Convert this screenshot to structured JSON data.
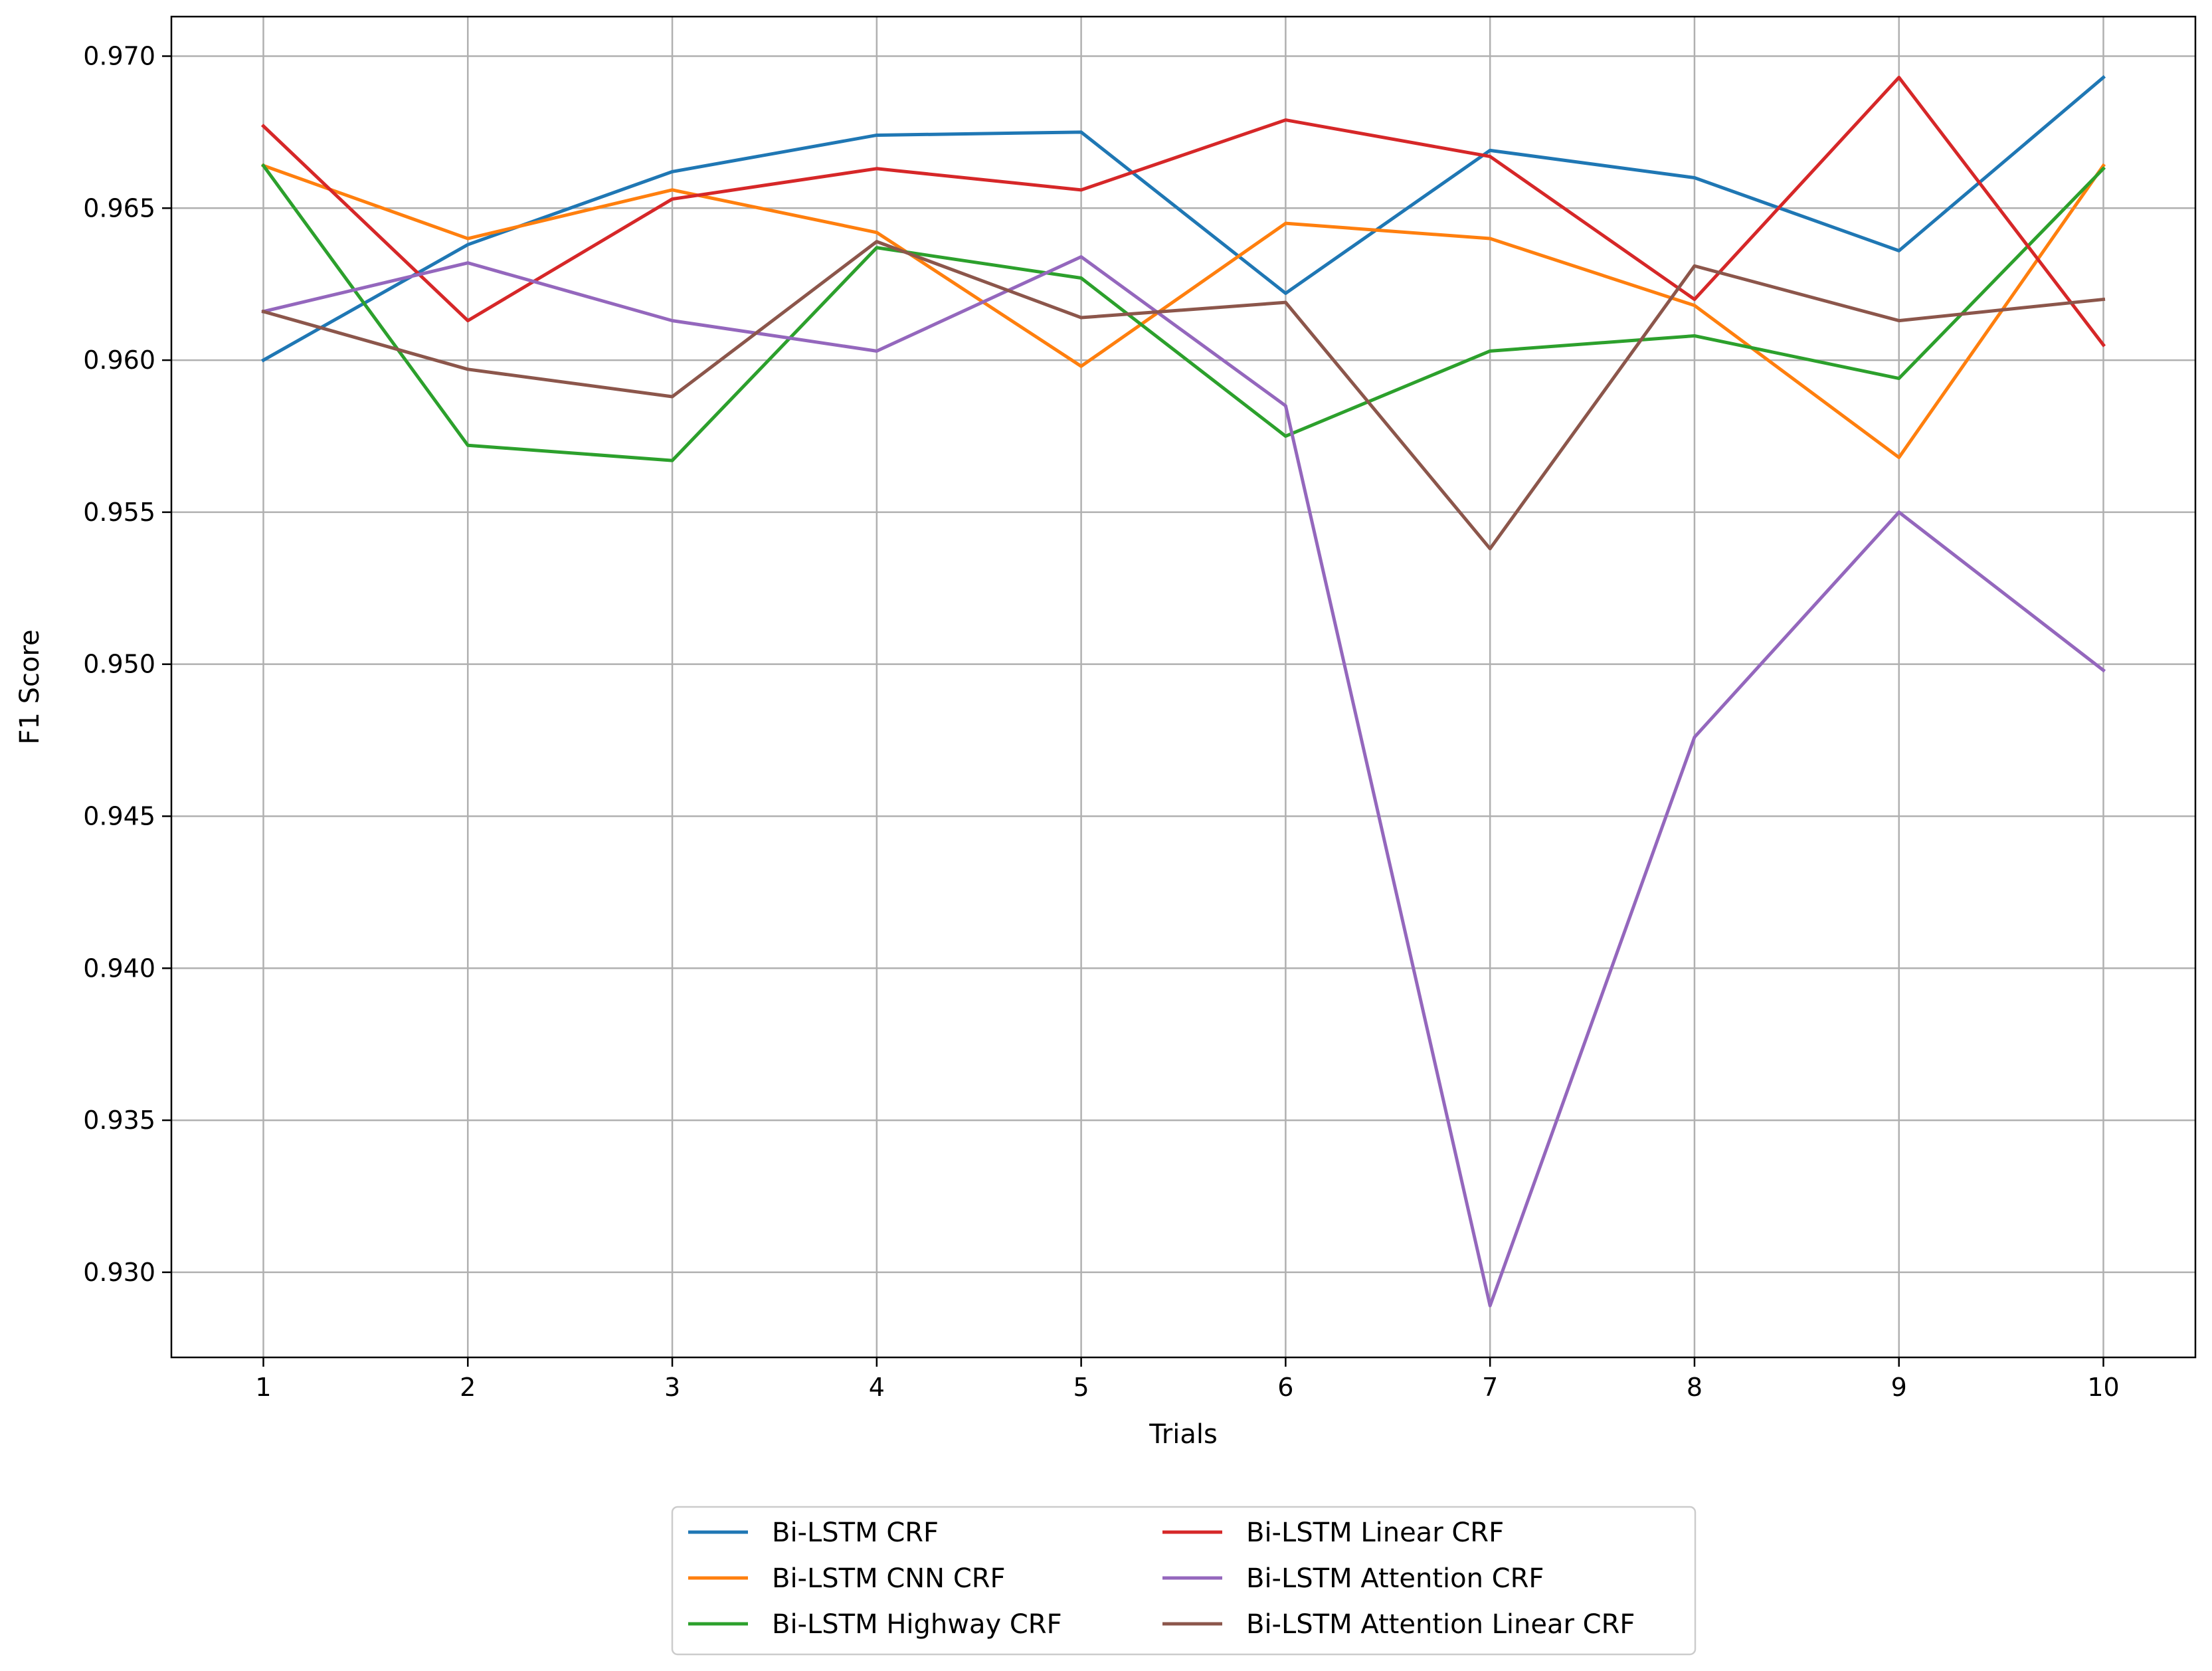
{
  "chart_data": {
    "type": "line",
    "title": "",
    "xlabel": "Trials",
    "ylabel": "F1 Score",
    "x": [
      1,
      2,
      3,
      4,
      5,
      6,
      7,
      8,
      9,
      10
    ],
    "x_ticks": [
      "1",
      "2",
      "3",
      "4",
      "5",
      "6",
      "7",
      "8",
      "9",
      "10"
    ],
    "y_ticks": [
      "0.930",
      "0.935",
      "0.940",
      "0.945",
      "0.950",
      "0.955",
      "0.960",
      "0.965",
      "0.970"
    ],
    "ylim": [
      0.9272,
      0.9713
    ],
    "xlim": [
      0.55,
      10.45
    ],
    "grid": true,
    "legend_placement": "below the plot, centered, two columns",
    "series": [
      {
        "name": "Bi-LSTM CRF",
        "color": "#1f77b4",
        "values": [
          0.96,
          0.9638,
          0.9662,
          0.9674,
          0.9675,
          0.9622,
          0.9669,
          0.966,
          0.9636,
          0.9693
        ]
      },
      {
        "name": "Bi-LSTM CNN CRF",
        "color": "#ff7f0e",
        "values": [
          0.9664,
          0.964,
          0.9656,
          0.9642,
          0.9598,
          0.9645,
          0.964,
          0.9618,
          0.9568,
          0.9664
        ]
      },
      {
        "name": "Bi-LSTM Highway CRF",
        "color": "#2ca02c",
        "values": [
          0.9664,
          0.9572,
          0.9567,
          0.9637,
          0.9627,
          0.9575,
          0.9603,
          0.9608,
          0.9594,
          0.9663
        ]
      },
      {
        "name": "Bi-LSTM Linear CRF",
        "color": "#d62728",
        "values": [
          0.9677,
          0.9613,
          0.9653,
          0.9663,
          0.9656,
          0.9679,
          0.9667,
          0.962,
          0.9693,
          0.9605
        ]
      },
      {
        "name": "Bi-LSTM Attention CRF",
        "color": "#9467bd",
        "values": [
          0.9616,
          0.9632,
          0.9613,
          0.9603,
          0.9634,
          0.9585,
          0.9289,
          0.9476,
          0.955,
          0.9498
        ]
      },
      {
        "name": "Bi-LSTM Attention Linear CRF",
        "color": "#8c564b",
        "values": [
          0.9616,
          0.9597,
          0.9588,
          0.9639,
          0.9614,
          0.9619,
          0.9538,
          0.9631,
          0.9613,
          0.962
        ]
      }
    ]
  }
}
